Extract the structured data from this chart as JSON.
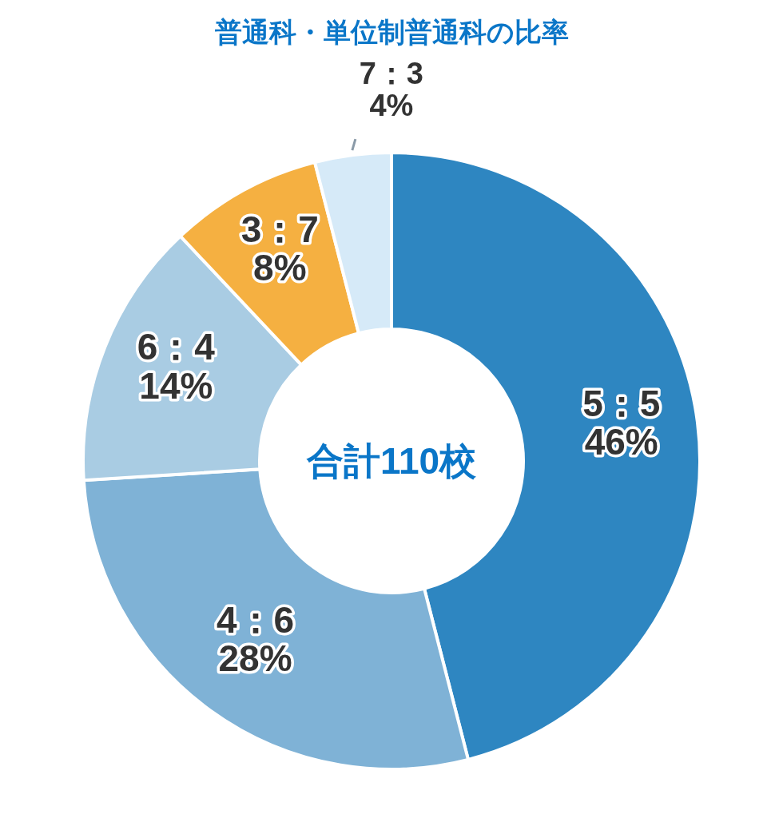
{
  "chart_data": {
    "type": "donut",
    "title": "普通科・単位制普通科の比率",
    "categories": [
      "5：5",
      "4：6",
      "6：4",
      "3：7",
      "7：3"
    ],
    "values": [
      46,
      28,
      14,
      8,
      4
    ],
    "value_labels": [
      "46%",
      "28%",
      "14%",
      "8%",
      "4%"
    ],
    "colors": [
      "#2e86c1",
      "#7fb2d6",
      "#a9cce3",
      "#f5b041",
      "#d6eaf8"
    ],
    "annotations": [
      "合計110校"
    ]
  }
}
